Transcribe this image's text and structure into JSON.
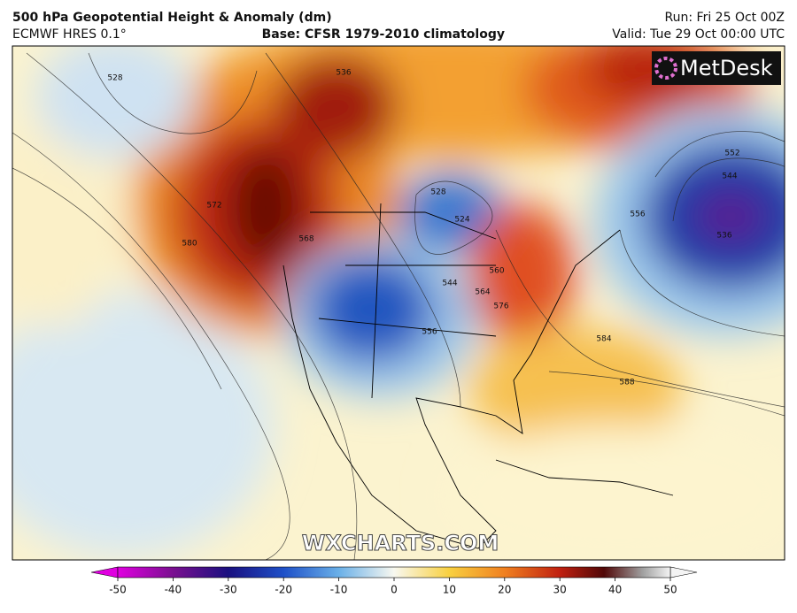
{
  "header": {
    "title": "500 hPa Geopotential Height & Anomaly (dm)",
    "model": "ECMWF HRES 0.1°",
    "base": "Base: CFSR 1979-2010 climatology",
    "run": "Run: Fri 25 Oct 00Z",
    "valid": "Valid: Tue 29 Oct 00:00 UTC"
  },
  "map": {
    "contour_labels": [
      "528",
      "536",
      "572",
      "580",
      "568",
      "528",
      "524",
      "544",
      "564",
      "560",
      "576",
      "556",
      "552",
      "544",
      "536",
      "556",
      "584",
      "588"
    ],
    "logo": "MetDesk",
    "watermark": "WXCHARTS.COM"
  },
  "colorbar": {
    "lim": [
      -50,
      50
    ],
    "ticks": [
      -50,
      -40,
      -30,
      -20,
      -10,
      0,
      10,
      20,
      30,
      40,
      50
    ]
  }
}
